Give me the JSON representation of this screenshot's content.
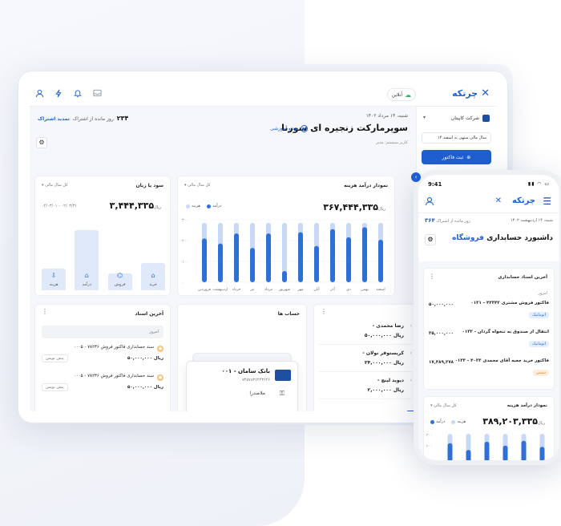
{
  "tablet": {
    "topbar": {
      "online_label": "آنلاین"
    },
    "brand": {
      "name": "چرتکه"
    },
    "sidebar": {
      "company": "شرکت کاپیتان",
      "fiscal_year": "سال مالی منتهی به اسفند ۱۴",
      "new_invoice": "ثبت فاکتور"
    },
    "header": {
      "date": "شنبه، ۱۴ مرداد ۱۴۰۲",
      "title": "سوپرمارکت زنجیره ای سورنا",
      "user_role": "کاربر سیستم: مدیر",
      "video_tutorial": "ویدیو آموزشی",
      "days_left": "۲۳۴",
      "days_left_label": "روز مانده از اشتراک",
      "renew": "تمدید اشتراک"
    },
    "profit_card": {
      "title": "سود یا زیان",
      "period": "کل سال مالی",
      "amount": "۳,۴۴۴,۳۳۵",
      "unit": "ریال",
      "date_range": "۰۲/۰۳/۰۱ - ۰۲/۰۳/۳۱",
      "bars": [
        {
          "label": "خرید",
          "level": 0.35
        },
        {
          "label": "فروش",
          "level": 0.22
        },
        {
          "label": "درآمد",
          "level": 0.78
        },
        {
          "label": "هزینه",
          "level": 0.28
        }
      ]
    },
    "income_expense": {
      "title": "نمودار درآمد هزینه",
      "period": "کل سال مالی",
      "amount": "۳۶۷,۴۴۴,۳۳۵",
      "unit": "ریال",
      "legend": {
        "income": "درآمد",
        "expense": "هزینه"
      },
      "colors": {
        "income": "#2f6fd8",
        "track": "#c7d9f6"
      },
      "ticks": [
        "۳۰۰",
        "۲۰۰",
        "۱۰۰",
        "۰"
      ]
    },
    "chart_data": {
      "type": "bar",
      "categories": [
        "اسفند",
        "بهمن",
        "دی",
        "آذر",
        "آبان",
        "مهر",
        "شهریور",
        "مرداد",
        "تیر",
        "خرداد",
        "اردیبهشت",
        "فروردین"
      ],
      "series": [
        {
          "name": "درآمد",
          "values": [
            0.68,
            0.88,
            0.72,
            0.85,
            0.58,
            0.8,
            0.18,
            0.78,
            0.55,
            0.78,
            0.62,
            0.7
          ]
        },
        {
          "name": "هزینه",
          "values": [
            0.95,
            0.95,
            0.95,
            0.95,
            0.95,
            0.95,
            0.95,
            0.95,
            0.95,
            0.95,
            0.95,
            0.95
          ]
        }
      ],
      "ylim": [
        0,
        1
      ]
    },
    "latest_docs": {
      "title": "آخرین اسناد",
      "today": "امروز",
      "items": [
        {
          "text": "۰۰۰۵ - سند حسابداری فاکتور فروش ۷۸۲۳۶",
          "amount": "۵۰,۰۰۰,۰۰۰",
          "unit": "ریال",
          "tag": "پیش نویس"
        },
        {
          "text": "۰۰۰۵ - سند حسابداری فاکتور فروش ۷۸۲۳۶",
          "amount": "۵۰,۰۰۰,۰۰۰",
          "unit": "ریال",
          "tag": "پیش نویس"
        }
      ]
    },
    "accounts": {
      "title": "حساب ها",
      "bank_name": "۰۰۱ - بانک سامان",
      "bank_number": "۷۴۵۷۸۳۶۴۴۳۶۴۶",
      "holder": "ملاصدرا"
    },
    "people": {
      "items": [
        {
          "name": "رضا محمدی",
          "amount": "۵۰,۰۰۰,۰۰۰",
          "unit": "ریال"
        },
        {
          "name": "کریستوفر نولان",
          "amount": "۳۴,۰۰۰,۰۰۰",
          "unit": "ریال"
        },
        {
          "name": "دیوید لینچ",
          "amount": "۲,۰۰۰,۰۰۰",
          "unit": "ریال"
        }
      ]
    }
  },
  "phone": {
    "time": "9:41",
    "brand": "چرتکه",
    "date": "شنبه، ۱۴ اردیبهشت ۱۴۰۲",
    "days_left": "۳۶۴",
    "days_left_label": "روز مانده از اشتراک",
    "title_prefix": "داشبورد حسابداری",
    "title_highlight": "فروشگاه",
    "docs_title": "آخرین اسناد حسابداری",
    "today": "امروز",
    "docs": [
      {
        "text": "۰۱۳۱ - فاکتور فروش مشتری ۴۳۳۴۲",
        "amount": "۵۰,۰۰۰,۰۰۰",
        "tag": "اتوماتیک",
        "tag_kind": "auto"
      },
      {
        "text": "۰۱۳۲ - انتقال از صندوق به تنخواه گردان",
        "amount": "۳۵,۰۰۰,۰۰۰",
        "tag": "اتوماتیک",
        "tag_kind": "auto"
      },
      {
        "text": "۰۱۳۳ - فاکتور خرید جعبه آقای محمدی ۴۰۲۳",
        "amount": "۱۷,۴۸۹,۲۷۸",
        "tag": "دستی",
        "tag_kind": "manual"
      }
    ],
    "chart_title": "نمودار درآمد هزینه",
    "chart_period": "کل سال مالی",
    "chart_amount": "۳۸۹,۲۰۳,۳۳۵",
    "chart_unit": "ریال",
    "legend": {
      "income": "درآمد",
      "expense": "هزینه"
    },
    "ticks": [
      "۳۰۰",
      "۲۰۰"
    ]
  }
}
